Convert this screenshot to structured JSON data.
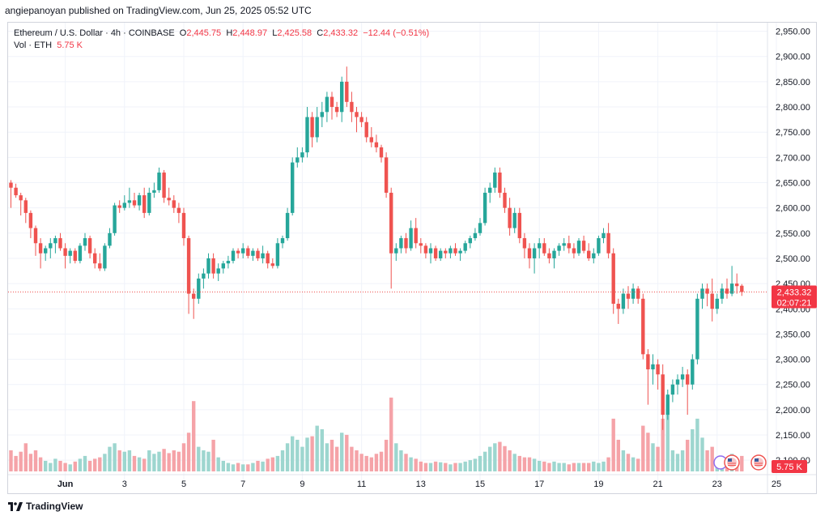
{
  "header": {
    "publisher": "angiepanoyan published on TradingView.com, Jun 25, 2025 05:52 UTC"
  },
  "legend": {
    "symbol": "Ethereum / U.S. Dollar · 4h · COINBASE",
    "o_label": "O",
    "o_value": "2,445.75",
    "h_label": "H",
    "h_value": "2,448.97",
    "l_label": "L",
    "l_value": "2,425.58",
    "c_label": "C",
    "c_value": "2,433.32",
    "change": "−12.44 (−0.51%)",
    "vol_label": "Vol · ETH",
    "vol_value": "5.75 K"
  },
  "price_badge": {
    "price": "2,433.32",
    "countdown": "02:07:21"
  },
  "volume_badge": "5.75 K",
  "footer": {
    "brand": "TradingView"
  },
  "colors": {
    "up": "#26a69a",
    "down": "#ef5350",
    "vol_up": "#9dd6cf",
    "vol_down": "#f5a3a8",
    "last_line": "#ef5350",
    "badge": "#f23645"
  },
  "chart_data": {
    "type": "candlestick",
    "title": "Ethereum / U.S. Dollar · 4h · COINBASE",
    "y_ticks": [
      "2,950.00",
      "2,900.00",
      "2,850.00",
      "2,800.00",
      "2,750.00",
      "2,700.00",
      "2,650.00",
      "2,600.00",
      "2,550.00",
      "2,500.00",
      "2,450.00",
      "2,400.00",
      "2,350.00",
      "2,300.00",
      "2,250.00",
      "2,200.00",
      "2,150.00",
      "2,100.00"
    ],
    "y_tick_values": [
      2950,
      2900,
      2850,
      2800,
      2750,
      2700,
      2650,
      2600,
      2550,
      2500,
      2450,
      2400,
      2350,
      2300,
      2250,
      2200,
      2150,
      2100
    ],
    "ylim": [
      2073,
      2967
    ],
    "x_ticks": [
      "Jun",
      "3",
      "5",
      "7",
      "9",
      "11",
      "13",
      "15",
      "17",
      "19",
      "21",
      "23",
      "25"
    ],
    "x_tick_bars": [
      11,
      23,
      35,
      47,
      59,
      71,
      83,
      95,
      107,
      119,
      131,
      143,
      155
    ],
    "last_price": 2433.32,
    "candles": [
      [
        2650,
        2655,
        2600,
        2640,
        0.3
      ],
      [
        2640,
        2648,
        2620,
        2625,
        0.22
      ],
      [
        2625,
        2630,
        2585,
        2615,
        0.28
      ],
      [
        2615,
        2620,
        2570,
        2590,
        0.4
      ],
      [
        2590,
        2595,
        2540,
        2560,
        0.25
      ],
      [
        2560,
        2565,
        2505,
        2530,
        0.3
      ],
      [
        2530,
        2540,
        2480,
        2510,
        0.2
      ],
      [
        2510,
        2525,
        2495,
        2520,
        0.15
      ],
      [
        2520,
        2540,
        2500,
        2530,
        0.12
      ],
      [
        2530,
        2545,
        2510,
        2540,
        0.18
      ],
      [
        2540,
        2550,
        2515,
        2520,
        0.15
      ],
      [
        2520,
        2530,
        2480,
        2505,
        0.12
      ],
      [
        2505,
        2520,
        2490,
        2515,
        0.1
      ],
      [
        2515,
        2520,
        2490,
        2495,
        0.14
      ],
      [
        2495,
        2530,
        2490,
        2525,
        0.18
      ],
      [
        2525,
        2550,
        2515,
        2540,
        0.22
      ],
      [
        2540,
        2545,
        2500,
        2510,
        0.15
      ],
      [
        2510,
        2520,
        2480,
        2490,
        0.18
      ],
      [
        2490,
        2510,
        2475,
        2480,
        0.2
      ],
      [
        2480,
        2530,
        2475,
        2525,
        0.25
      ],
      [
        2525,
        2560,
        2520,
        2550,
        0.35
      ],
      [
        2550,
        2610,
        2545,
        2605,
        0.4
      ],
      [
        2605,
        2615,
        2590,
        2600,
        0.3
      ],
      [
        2600,
        2625,
        2595,
        2610,
        0.28
      ],
      [
        2610,
        2640,
        2600,
        2615,
        0.3
      ],
      [
        2615,
        2630,
        2600,
        2605,
        0.22
      ],
      [
        2605,
        2630,
        2595,
        2625,
        0.2
      ],
      [
        2625,
        2640,
        2580,
        2590,
        0.18
      ],
      [
        2590,
        2640,
        2585,
        2630,
        0.3
      ],
      [
        2630,
        2650,
        2620,
        2635,
        0.25
      ],
      [
        2635,
        2680,
        2630,
        2670,
        0.28
      ],
      [
        2670,
        2675,
        2610,
        2620,
        0.32
      ],
      [
        2620,
        2640,
        2605,
        2615,
        0.26
      ],
      [
        2615,
        2625,
        2590,
        2600,
        0.3
      ],
      [
        2600,
        2610,
        2570,
        2590,
        0.28
      ],
      [
        2590,
        2600,
        2525,
        2540,
        0.4
      ],
      [
        2540,
        2545,
        2390,
        2430,
        0.55
      ],
      [
        2430,
        2440,
        2380,
        2420,
        1.0
      ],
      [
        2420,
        2470,
        2410,
        2460,
        0.35
      ],
      [
        2460,
        2480,
        2440,
        2470,
        0.3
      ],
      [
        2470,
        2510,
        2460,
        2500,
        0.28
      ],
      [
        2500,
        2510,
        2460,
        2470,
        0.45
      ],
      [
        2470,
        2490,
        2455,
        2480,
        0.2
      ],
      [
        2480,
        2495,
        2470,
        2490,
        0.15
      ],
      [
        2490,
        2505,
        2480,
        2495,
        0.12
      ],
      [
        2495,
        2520,
        2490,
        2515,
        0.1
      ],
      [
        2515,
        2520,
        2500,
        2510,
        0.12
      ],
      [
        2510,
        2530,
        2500,
        2520,
        0.1
      ],
      [
        2520,
        2525,
        2500,
        2505,
        0.1
      ],
      [
        2505,
        2520,
        2495,
        2515,
        0.12
      ],
      [
        2515,
        2520,
        2495,
        2500,
        0.15
      ],
      [
        2500,
        2525,
        2490,
        2510,
        0.14
      ],
      [
        2510,
        2515,
        2480,
        2490,
        0.18
      ],
      [
        2490,
        2500,
        2480,
        2485,
        0.2
      ],
      [
        2485,
        2540,
        2480,
        2530,
        0.22
      ],
      [
        2530,
        2545,
        2520,
        2540,
        0.3
      ],
      [
        2540,
        2600,
        2535,
        2590,
        0.4
      ],
      [
        2590,
        2700,
        2585,
        2690,
        0.5
      ],
      [
        2690,
        2720,
        2680,
        2700,
        0.45
      ],
      [
        2700,
        2720,
        2690,
        2710,
        0.35
      ],
      [
        2710,
        2800,
        2700,
        2780,
        0.48
      ],
      [
        2780,
        2790,
        2720,
        2740,
        0.5
      ],
      [
        2740,
        2800,
        2730,
        2780,
        0.65
      ],
      [
        2780,
        2810,
        2760,
        2790,
        0.6
      ],
      [
        2790,
        2830,
        2770,
        2820,
        0.4
      ],
      [
        2820,
        2830,
        2775,
        2800,
        0.45
      ],
      [
        2800,
        2810,
        2780,
        2790,
        0.35
      ],
      [
        2790,
        2860,
        2770,
        2850,
        0.55
      ],
      [
        2850,
        2880,
        2800,
        2810,
        0.52
      ],
      [
        2810,
        2830,
        2770,
        2790,
        0.35
      ],
      [
        2790,
        2800,
        2750,
        2780,
        0.3
      ],
      [
        2780,
        2790,
        2760,
        2770,
        0.25
      ],
      [
        2770,
        2780,
        2730,
        2740,
        0.22
      ],
      [
        2740,
        2760,
        2720,
        2730,
        0.2
      ],
      [
        2730,
        2745,
        2710,
        2720,
        0.25
      ],
      [
        2720,
        2725,
        2690,
        2700,
        0.28
      ],
      [
        2700,
        2710,
        2620,
        2630,
        0.45
      ],
      [
        2630,
        2640,
        2440,
        2510,
        1.05
      ],
      [
        2510,
        2530,
        2495,
        2520,
        0.4
      ],
      [
        2520,
        2545,
        2510,
        2540,
        0.3
      ],
      [
        2540,
        2550,
        2510,
        2520,
        0.25
      ],
      [
        2520,
        2575,
        2515,
        2560,
        0.2
      ],
      [
        2560,
        2580,
        2520,
        2530,
        0.18
      ],
      [
        2530,
        2540,
        2510,
        2525,
        0.14
      ],
      [
        2525,
        2530,
        2500,
        2510,
        0.12
      ],
      [
        2510,
        2530,
        2490,
        2520,
        0.12
      ],
      [
        2520,
        2525,
        2495,
        2500,
        0.14
      ],
      [
        2500,
        2520,
        2495,
        2515,
        0.13
      ],
      [
        2515,
        2520,
        2500,
        2510,
        0.12
      ],
      [
        2510,
        2525,
        2500,
        2520,
        0.1
      ],
      [
        2520,
        2530,
        2505,
        2510,
        0.12
      ],
      [
        2510,
        2520,
        2495,
        2515,
        0.12
      ],
      [
        2515,
        2535,
        2510,
        2530,
        0.14
      ],
      [
        2530,
        2545,
        2520,
        2540,
        0.16
      ],
      [
        2540,
        2560,
        2535,
        2550,
        0.18
      ],
      [
        2550,
        2580,
        2545,
        2570,
        0.22
      ],
      [
        2570,
        2640,
        2565,
        2630,
        0.28
      ],
      [
        2630,
        2650,
        2610,
        2640,
        0.35
      ],
      [
        2640,
        2680,
        2630,
        2670,
        0.4
      ],
      [
        2670,
        2680,
        2620,
        2630,
        0.42
      ],
      [
        2630,
        2640,
        2590,
        2600,
        0.36
      ],
      [
        2600,
        2620,
        2545,
        2560,
        0.3
      ],
      [
        2560,
        2600,
        2550,
        2590,
        0.25
      ],
      [
        2590,
        2600,
        2530,
        2540,
        0.22
      ],
      [
        2540,
        2550,
        2500,
        2520,
        0.2
      ],
      [
        2520,
        2530,
        2480,
        2500,
        0.2
      ],
      [
        2500,
        2530,
        2470,
        2520,
        0.18
      ],
      [
        2520,
        2540,
        2500,
        2530,
        0.15
      ],
      [
        2530,
        2540,
        2505,
        2510,
        0.14
      ],
      [
        2510,
        2520,
        2490,
        2500,
        0.12
      ],
      [
        2500,
        2520,
        2480,
        2515,
        0.14
      ],
      [
        2515,
        2530,
        2505,
        2525,
        0.12
      ],
      [
        2525,
        2540,
        2515,
        2530,
        0.12
      ],
      [
        2530,
        2545,
        2510,
        2520,
        0.1
      ],
      [
        2520,
        2530,
        2500,
        2510,
        0.12
      ],
      [
        2510,
        2540,
        2505,
        2535,
        0.12
      ],
      [
        2535,
        2545,
        2510,
        2515,
        0.12
      ],
      [
        2515,
        2530,
        2495,
        2500,
        0.12
      ],
      [
        2500,
        2520,
        2490,
        2510,
        0.14
      ],
      [
        2510,
        2545,
        2505,
        2540,
        0.12
      ],
      [
        2540,
        2560,
        2530,
        2550,
        0.14
      ],
      [
        2550,
        2570,
        2500,
        2510,
        0.2
      ],
      [
        2510,
        2520,
        2390,
        2410,
        0.75
      ],
      [
        2410,
        2420,
        2370,
        2400,
        0.45
      ],
      [
        2400,
        2440,
        2390,
        2430,
        0.3
      ],
      [
        2430,
        2445,
        2400,
        2420,
        0.25
      ],
      [
        2420,
        2450,
        2410,
        2440,
        0.2
      ],
      [
        2440,
        2445,
        2410,
        2420,
        0.18
      ],
      [
        2420,
        2430,
        2300,
        2310,
        0.65
      ],
      [
        2310,
        2320,
        2210,
        2280,
        0.55
      ],
      [
        2280,
        2310,
        2250,
        2290,
        0.4
      ],
      [
        2290,
        2300,
        2240,
        2270,
        0.35
      ],
      [
        2270,
        2290,
        2160,
        2190,
        0.75
      ],
      [
        2190,
        2240,
        2180,
        2230,
        0.95
      ],
      [
        2230,
        2260,
        2215,
        2250,
        0.3
      ],
      [
        2250,
        2270,
        2230,
        2260,
        0.25
      ],
      [
        2260,
        2285,
        2245,
        2270,
        0.3
      ],
      [
        2270,
        2280,
        2190,
        2250,
        0.45
      ],
      [
        2250,
        2310,
        2240,
        2300,
        0.6
      ],
      [
        2300,
        2430,
        2290,
        2420,
        0.75
      ],
      [
        2420,
        2450,
        2400,
        2440,
        0.48
      ],
      [
        2440,
        2450,
        2405,
        2430,
        0.3
      ],
      [
        2430,
        2460,
        2375,
        2400,
        0.35
      ],
      [
        2400,
        2430,
        2390,
        2420,
        0.2
      ],
      [
        2420,
        2450,
        2410,
        2440,
        0.18
      ],
      [
        2440,
        2460,
        2420,
        2430,
        0.2
      ],
      [
        2430,
        2485,
        2425,
        2450,
        0.25
      ],
      [
        2450,
        2470,
        2430,
        2445,
        0.15
      ],
      [
        2445.75,
        2448.97,
        2425.58,
        2433.32,
        0.22
      ]
    ]
  }
}
